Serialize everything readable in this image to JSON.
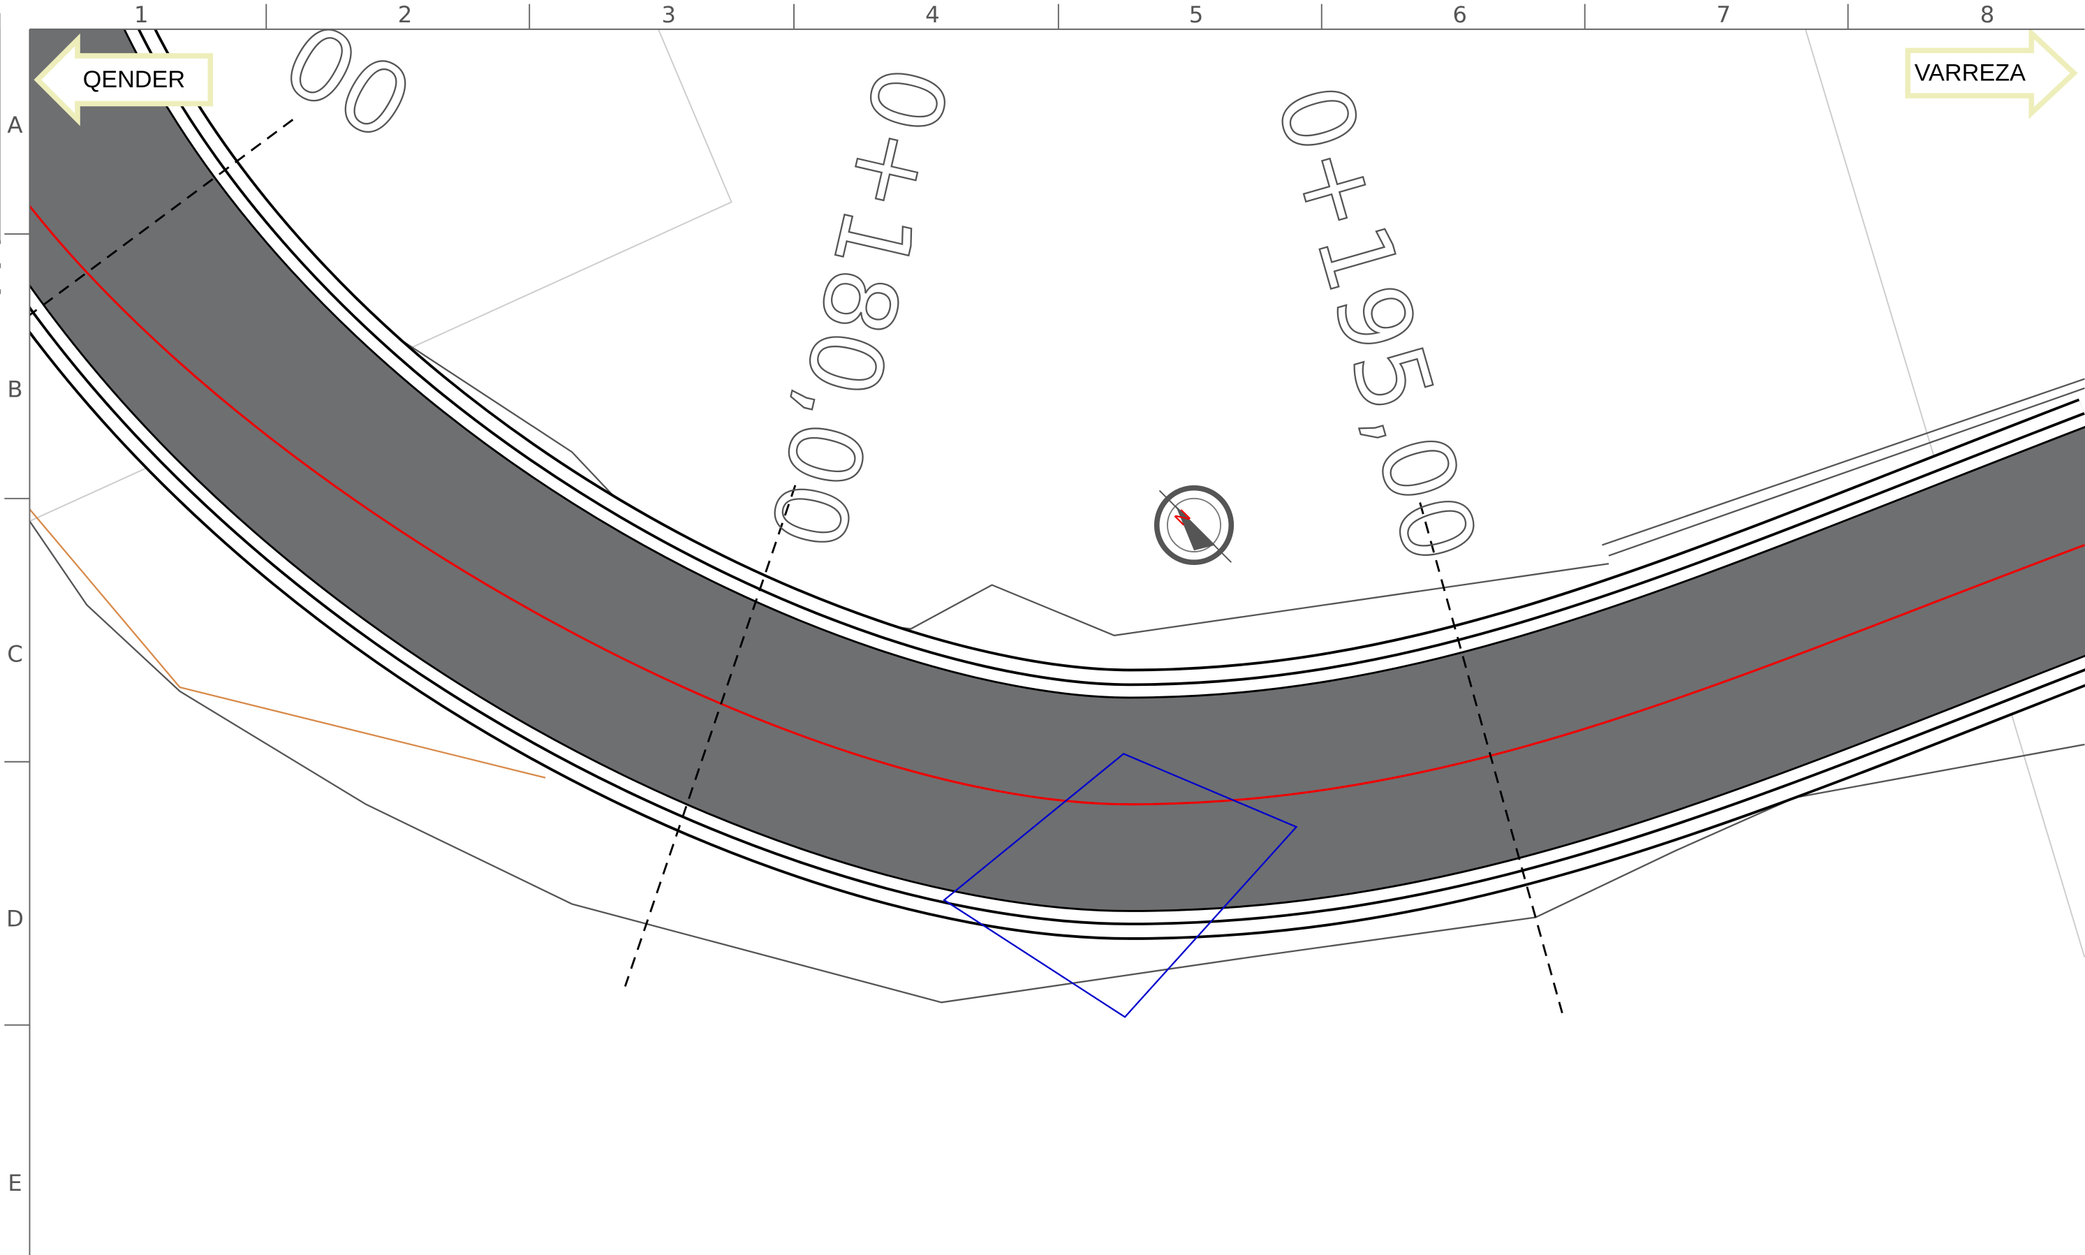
{
  "ruler": {
    "columns": [
      "1",
      "2",
      "3",
      "4",
      "5",
      "6",
      "7",
      "8"
    ],
    "rows": [
      "A",
      "B",
      "C",
      "D",
      "E"
    ]
  },
  "arrows": {
    "left": "QENDER",
    "right": "VARREZA"
  },
  "stations": [
    "0+180,00",
    "0+195,00"
  ],
  "partial_station": "00",
  "compass": "N"
}
